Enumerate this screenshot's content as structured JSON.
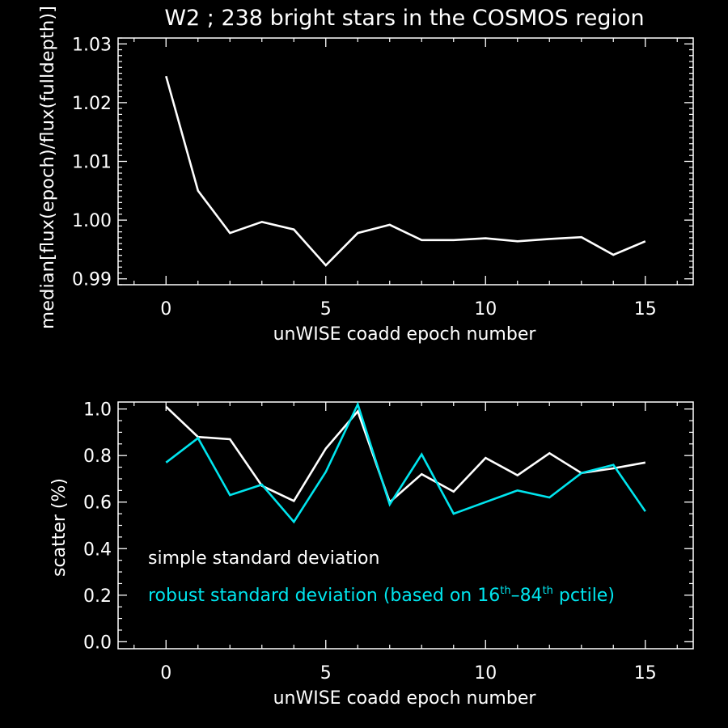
{
  "colors": {
    "background": "#000000",
    "axis": "#ffffff",
    "series_simple": "#ffffff",
    "series_robust": "#00e5ee"
  },
  "chart_data": [
    {
      "type": "line",
      "title": "W2 ; 238 bright stars in the COSMOS region",
      "xlabel": "unWISE coadd epoch number",
      "ylabel": "median[flux(epoch)/flux(fulldepth)]",
      "xlim": [
        -1.5,
        16.5
      ],
      "ylim": [
        0.989,
        1.031
      ],
      "xticks": [
        "0",
        "5",
        "10",
        "15"
      ],
      "yticks": [
        "0.99",
        "1.00",
        "1.01",
        "1.02",
        "1.03"
      ],
      "series": [
        {
          "x": [
            0,
            1,
            2,
            3,
            4,
            5,
            6,
            7,
            8,
            9,
            10,
            11,
            12,
            13,
            14,
            15
          ],
          "values": [
            1.0245,
            1.005,
            0.9978,
            0.9997,
            0.9984,
            0.9923,
            0.9978,
            0.9992,
            0.9966,
            0.9966,
            0.9969,
            0.9964,
            0.9968,
            0.9971,
            0.9941,
            0.9964
          ]
        }
      ]
    },
    {
      "type": "line",
      "title": "",
      "xlabel": "unWISE coadd epoch number",
      "ylabel": "scatter (%)",
      "xlim": [
        -1.5,
        16.5
      ],
      "ylim": [
        -0.03,
        1.03
      ],
      "xticks": [
        "0",
        "5",
        "10",
        "15"
      ],
      "yticks": [
        "0.0",
        "0.2",
        "0.4",
        "0.6",
        "0.8",
        "1.0"
      ],
      "legend": {
        "simple": "simple standard deviation",
        "robust_prefix": "robust standard deviation (based on 16",
        "sup1": "th",
        "dash": "–84",
        "sup2": "th",
        "robust_suffix": " pctile)"
      },
      "series": [
        {
          "name": "simple standard deviation",
          "x": [
            0,
            1,
            2,
            3,
            4,
            5,
            6,
            7,
            8,
            9,
            10,
            11,
            12,
            13,
            14,
            15
          ],
          "values": [
            1.01,
            0.88,
            0.87,
            0.67,
            0.605,
            0.83,
            0.99,
            0.6,
            0.72,
            0.645,
            0.79,
            0.715,
            0.81,
            0.725,
            0.745,
            0.77
          ]
        },
        {
          "name": "robust standard deviation (based on 16th–84th pctile)",
          "x": [
            0,
            1,
            2,
            3,
            4,
            5,
            6,
            7,
            8,
            9,
            10,
            11,
            12,
            13,
            14,
            15
          ],
          "values": [
            0.77,
            0.875,
            0.63,
            0.675,
            0.515,
            0.73,
            1.02,
            0.59,
            0.805,
            0.55,
            0.6,
            0.65,
            0.62,
            0.725,
            0.76,
            0.56
          ]
        }
      ]
    }
  ]
}
